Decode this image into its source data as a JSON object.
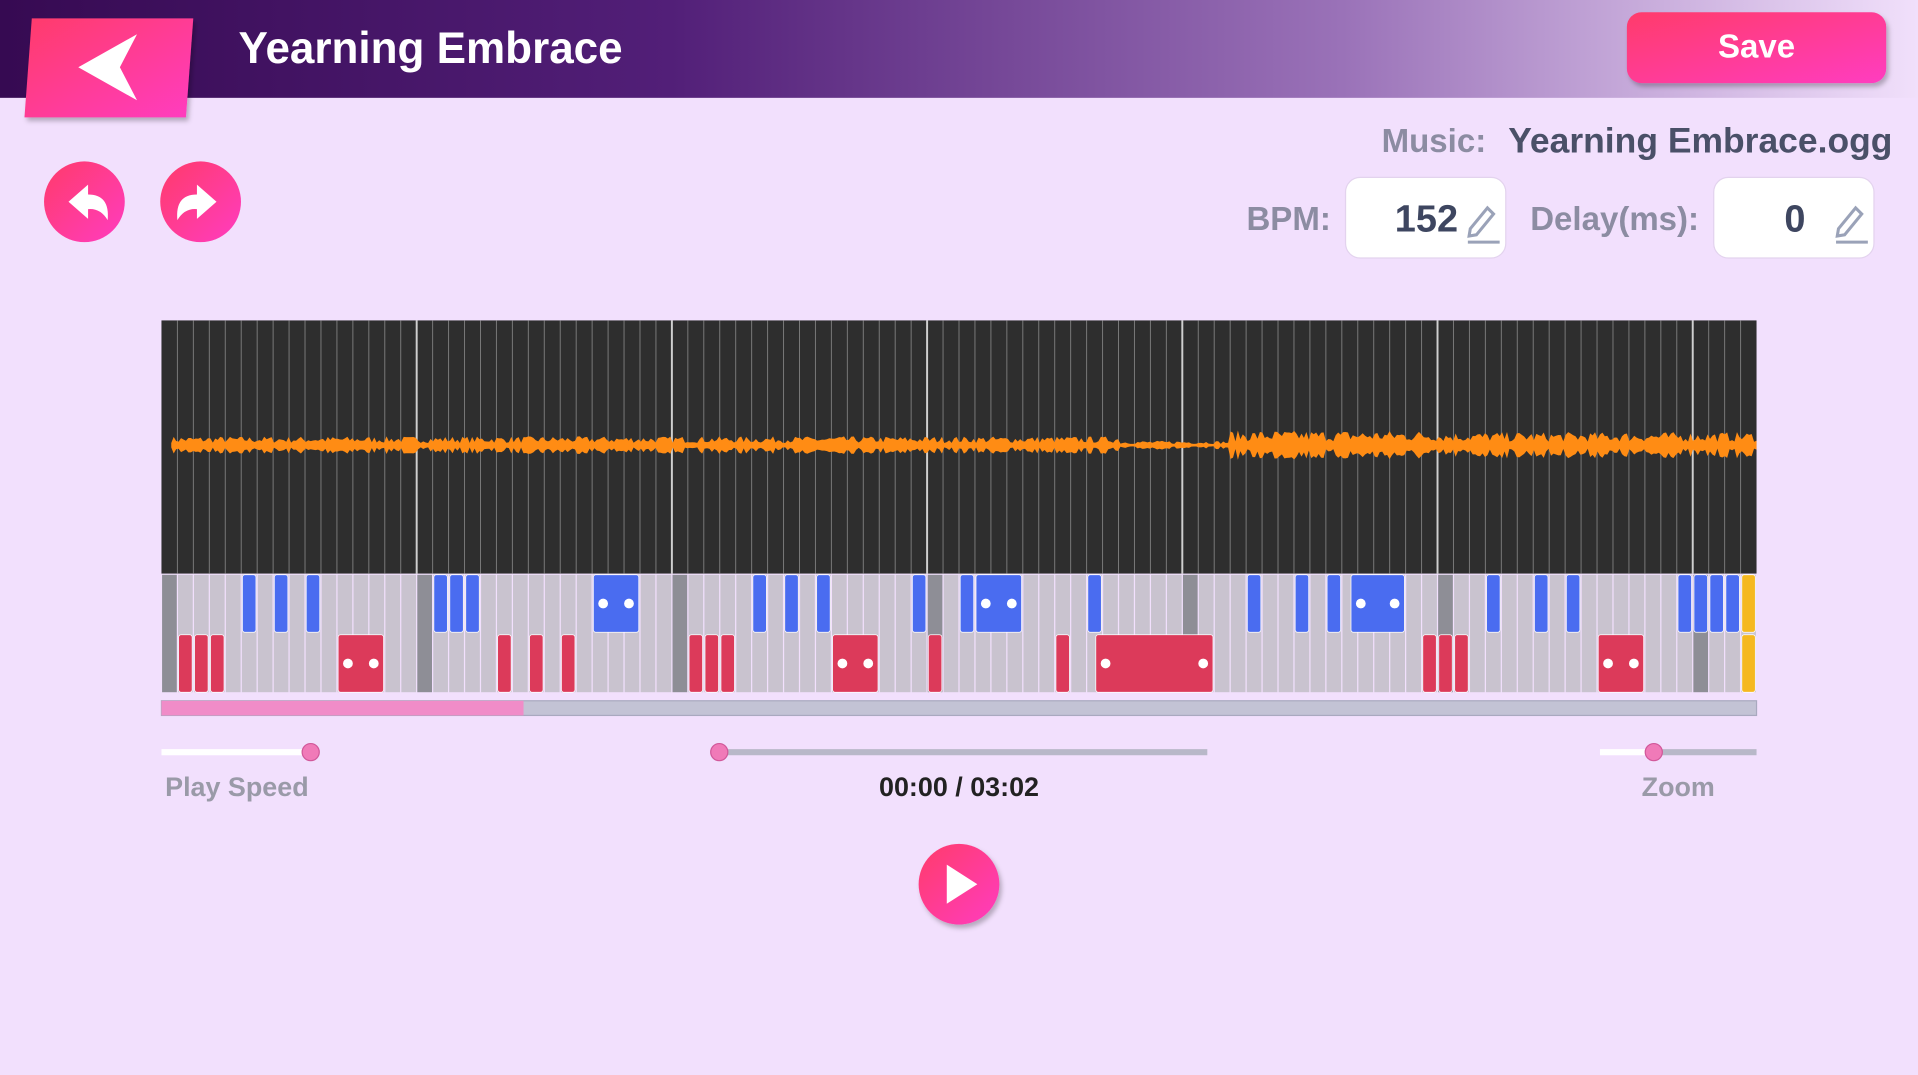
{
  "header": {
    "title": "Yearning Embrace",
    "save": "Save"
  },
  "music": {
    "label": "Music:",
    "file": "Yearning Embrace.ogg"
  },
  "bpm": {
    "label": "BPM:",
    "value": 152
  },
  "delay": {
    "label": "Delay(ms):",
    "value": 0
  },
  "controls": {
    "play_speed": "Play Speed",
    "time": "00:00 / 03:02",
    "zoom": "Zoom"
  }
}
